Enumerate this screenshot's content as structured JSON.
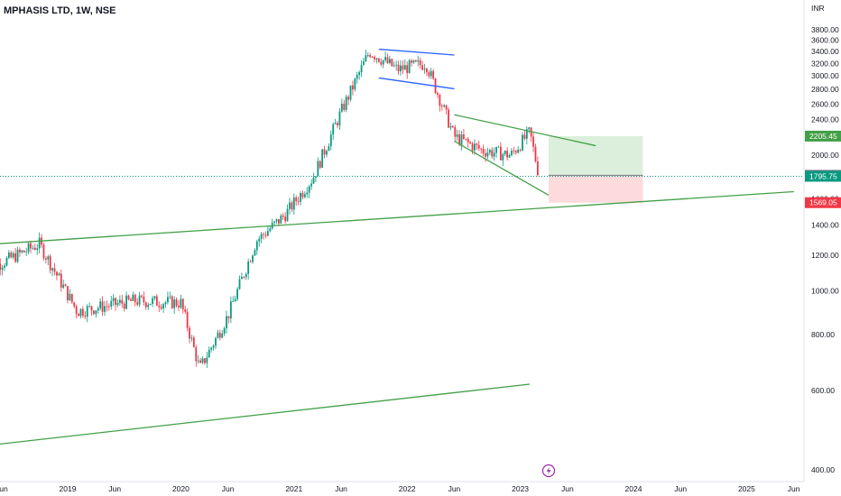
{
  "header": {
    "title": "MPHASIS LTD, 1W, NSE",
    "currency": "INR"
  },
  "chart_data": {
    "type": "candlestick",
    "symbol": "MPHASIS LTD",
    "interval": "1W",
    "exchange": "NSE",
    "currency": "INR",
    "y_scale": "log",
    "ylim": [
      380,
      4000
    ],
    "y_ticks": [
      400,
      600,
      800,
      1000,
      1200,
      1400,
      1600,
      1800,
      2000,
      2200,
      2400,
      2600,
      2800,
      3000,
      3200,
      3400,
      3600,
      3800
    ],
    "x_ticks": [
      "Jun",
      "2019",
      "Jun",
      "2020",
      "Jun",
      "2021",
      "Jun",
      "2022",
      "Jun",
      "2023",
      "Jun",
      "2024",
      "Jun",
      "2025",
      "Jun"
    ],
    "price_labels": [
      {
        "value": 2205.45,
        "label": "2205.45",
        "color": "#43a047"
      },
      {
        "value": 1804.75,
        "label": "1804.75",
        "color": "#787b86"
      },
      {
        "value": 1795.75,
        "label": "1795.75",
        "color": "#089981"
      },
      {
        "value": 1569.05,
        "label": "1569.05",
        "color": "#f23645"
      }
    ],
    "price_series": [
      {
        "date": "2018-04",
        "close": 1100
      },
      {
        "date": "2018-10",
        "close": 1270
      },
      {
        "date": "2019-02",
        "close": 900
      },
      {
        "date": "2019-08",
        "close": 950
      },
      {
        "date": "2020-01",
        "close": 940
      },
      {
        "date": "2020-03",
        "close": 670
      },
      {
        "date": "2020-06",
        "close": 880
      },
      {
        "date": "2020-09",
        "close": 1290
      },
      {
        "date": "2020-12",
        "close": 1470
      },
      {
        "date": "2021-03",
        "close": 1780
      },
      {
        "date": "2021-06",
        "close": 2500
      },
      {
        "date": "2021-09",
        "close": 3400
      },
      {
        "date": "2021-12",
        "close": 3100
      },
      {
        "date": "2022-03",
        "close": 3200
      },
      {
        "date": "2022-06",
        "close": 2200
      },
      {
        "date": "2022-09",
        "close": 2050
      },
      {
        "date": "2022-12",
        "close": 2000
      },
      {
        "date": "2023-02",
        "close": 2250
      },
      {
        "date": "2023-03",
        "close": 1796
      }
    ],
    "trendlines": [
      {
        "name": "channel-top",
        "color": "#2962ff",
        "from": {
          "date": "2021-10",
          "price": 3440
        },
        "to": {
          "date": "2022-06",
          "price": 3340
        }
      },
      {
        "name": "channel-bottom",
        "color": "#2962ff",
        "from": {
          "date": "2021-10",
          "price": 2970
        },
        "to": {
          "date": "2022-06",
          "price": 2810
        }
      },
      {
        "name": "wedge-top",
        "color": "#43a047",
        "from": {
          "date": "2022-06",
          "price": 2460
        },
        "to": {
          "date": "2023-09",
          "price": 2100
        }
      },
      {
        "name": "wedge-bottom",
        "color": "#43a047",
        "from": {
          "date": "2022-06",
          "price": 2150
        },
        "to": {
          "date": "2023-04",
          "price": 1630
        }
      },
      {
        "name": "long-support",
        "color": "#43a047",
        "from": {
          "date": "2018-04",
          "price": 1265
        },
        "to": {
          "date": "2025-06",
          "price": 1660
        }
      },
      {
        "name": "lower-support",
        "color": "#43a047",
        "from": {
          "date": "2018-04",
          "price": 452
        },
        "to": {
          "date": "2023-02",
          "price": 620
        }
      }
    ],
    "position": {
      "type": "long",
      "start": "2023-04",
      "end": "2024-02",
      "entry": 1804.75,
      "target": 2205.45,
      "stop": 1569.05
    },
    "grid": false
  }
}
